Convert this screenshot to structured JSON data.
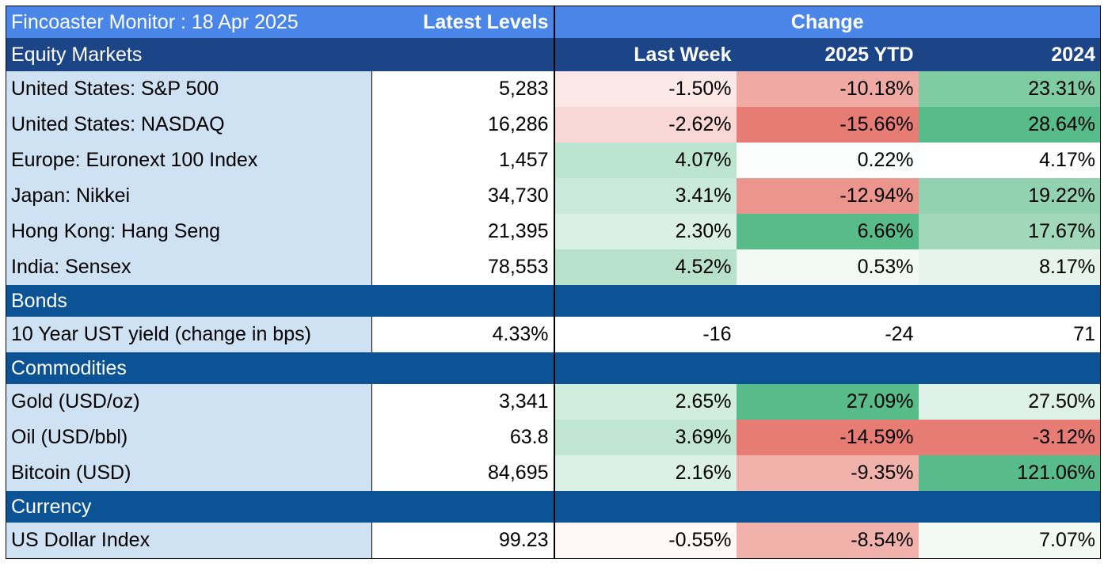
{
  "header": {
    "title": "Fincoaster Monitor : 18 Apr 2025",
    "latest_levels": "Latest Levels",
    "change": "Change"
  },
  "subheader": {
    "section": "Equity Markets",
    "last_week": "Last Week",
    "ytd": "2025 YTD",
    "year2024": "2024"
  },
  "equity_markets": [
    {
      "name": "United States: S&P 500",
      "level": "5,283",
      "last_week": "-1.50%",
      "ytd": "-10.18%",
      "y2024": "23.31%",
      "colors": {
        "last_week": "#fce8e6",
        "ytd": "#eeaaa3",
        "y2024": "#7fcba2"
      }
    },
    {
      "name": "United States: NASDAQ",
      "level": "16,286",
      "last_week": "-2.62%",
      "ytd": "-15.66%",
      "y2024": "28.64%",
      "colors": {
        "last_week": "#f8d7d4",
        "ytd": "#e67c73",
        "y2024": "#57bb8a"
      }
    },
    {
      "name": "Europe: Euronext 100 Index",
      "level": "1,457",
      "last_week": "4.07%",
      "ytd": "0.22%",
      "y2024": "4.17%",
      "colors": {
        "last_week": "#bce5d0",
        "ytd": "#fafdfb",
        "y2024": "#ffffff"
      }
    },
    {
      "name": "Japan: Nikkei",
      "level": "34,730",
      "last_week": "3.41%",
      "ytd": "-12.94%",
      "y2024": "19.22%",
      "colors": {
        "last_week": "#c9eadb",
        "ytd": "#ec958d",
        "y2024": "#93d2b0"
      }
    },
    {
      "name": "Hong Kong: Hang Seng",
      "level": "21,395",
      "last_week": "2.30%",
      "ytd": "6.66%",
      "y2024": "17.67%",
      "colors": {
        "last_week": "#daf0e4",
        "ytd": "#57bb8a",
        "y2024": "#a1d8ba"
      }
    },
    {
      "name": "India: Sensex",
      "level": "78,553",
      "last_week": "4.52%",
      "ytd": "0.53%",
      "y2024": "8.17%",
      "colors": {
        "last_week": "#b7e1cb",
        "ytd": "#f2f9f5",
        "y2024": "#e6f4ec"
      }
    }
  ],
  "bonds": {
    "section": "Bonds",
    "rows": [
      {
        "name": "10 Year UST yield (change in bps)",
        "level": "4.33%",
        "last_week": "-16",
        "ytd": "-24",
        "y2024": "71",
        "colors": {
          "last_week": "#ffffff",
          "ytd": "#ffffff",
          "y2024": "#ffffff"
        }
      }
    ]
  },
  "commodities": {
    "section": "Commodities",
    "rows": [
      {
        "name": "Gold (USD/oz)",
        "level": "3,341",
        "last_week": "2.65%",
        "ytd": "27.09%",
        "y2024": "27.50%",
        "colors": {
          "last_week": "#d1eedd",
          "ytd": "#57bb8a",
          "y2024": "#ddf1e6"
        }
      },
      {
        "name": "Oil (USD/bbl)",
        "level": "63.8",
        "last_week": "3.69%",
        "ytd": "-14.59%",
        "y2024": "-3.12%",
        "colors": {
          "last_week": "#c0e6d2",
          "ytd": "#e67c73",
          "y2024": "#e67c73"
        }
      },
      {
        "name": "Bitcoin (USD)",
        "level": "84,695",
        "last_week": "2.16%",
        "ytd": "-9.35%",
        "y2024": "121.06%",
        "colors": {
          "last_week": "#dcf1e6",
          "ytd": "#f0b2ab",
          "y2024": "#57bb8a"
        }
      }
    ]
  },
  "currency": {
    "section": "Currency",
    "rows": [
      {
        "name": "US Dollar Index",
        "level": "99.23",
        "last_week": "-0.55%",
        "ytd": "-8.54%",
        "y2024": "7.07%",
        "colors": {
          "last_week": "#fff8f7",
          "ytd": "#f0b2ab",
          "y2024": "#f3faf6"
        }
      }
    ]
  }
}
